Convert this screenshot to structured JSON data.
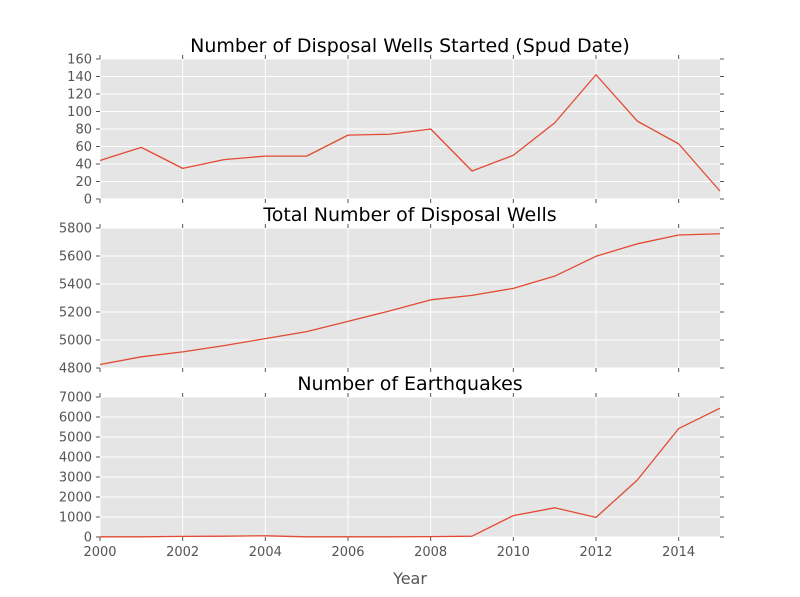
{
  "chart_data": [
    {
      "type": "line",
      "title": "Number of Disposal Wells Started (Spud Date)",
      "xlabel": "",
      "ylabel": "",
      "x": [
        2000,
        2001,
        2002,
        2003,
        2004,
        2005,
        2006,
        2007,
        2008,
        2009,
        2010,
        2011,
        2012,
        2013,
        2014,
        2015
      ],
      "values": [
        44,
        59,
        35,
        45,
        49,
        49,
        73,
        74,
        80,
        32,
        50,
        87,
        142,
        89,
        63,
        9
      ],
      "ylim": [
        0,
        160
      ],
      "yticks": [
        0,
        20,
        40,
        60,
        80,
        100,
        120,
        140,
        160
      ],
      "xlim": [
        2000,
        2015
      ],
      "grid": true,
      "line_color": "#e24a33"
    },
    {
      "type": "line",
      "title": "Total Number of Disposal Wells",
      "xlabel": "",
      "ylabel": "",
      "x": [
        2000,
        2001,
        2002,
        2003,
        2004,
        2005,
        2006,
        2007,
        2008,
        2009,
        2010,
        2011,
        2012,
        2013,
        2014,
        2015
      ],
      "values": [
        4825,
        4880,
        4915,
        4960,
        5010,
        5060,
        5133,
        5207,
        5287,
        5319,
        5369,
        5456,
        5598,
        5687,
        5750,
        5759
      ],
      "ylim": [
        4800,
        5800
      ],
      "yticks": [
        4800,
        5000,
        5200,
        5400,
        5600,
        5800
      ],
      "xlim": [
        2000,
        2015
      ],
      "grid": true,
      "line_color": "#e24a33"
    },
    {
      "type": "line",
      "title": "Number of Earthquakes",
      "xlabel": "Year",
      "ylabel": "",
      "x": [
        2000,
        2001,
        2002,
        2003,
        2004,
        2005,
        2006,
        2007,
        2008,
        2009,
        2010,
        2011,
        2012,
        2013,
        2014,
        2015
      ],
      "values": [
        10,
        10,
        30,
        40,
        60,
        10,
        10,
        10,
        20,
        40,
        1070,
        1460,
        980,
        2850,
        5420,
        6440
      ],
      "ylim": [
        0,
        7000
      ],
      "yticks": [
        0,
        1000,
        2000,
        3000,
        4000,
        5000,
        6000,
        7000
      ],
      "xlim": [
        2000,
        2015
      ],
      "xticks": [
        2000,
        2002,
        2004,
        2006,
        2008,
        2010,
        2012,
        2014
      ],
      "grid": true,
      "line_color": "#e24a33"
    }
  ],
  "colors": {
    "plot_background": "#e5e5e5",
    "grid": "#ffffff",
    "tick_text": "#555555",
    "line": "#e24a33"
  }
}
